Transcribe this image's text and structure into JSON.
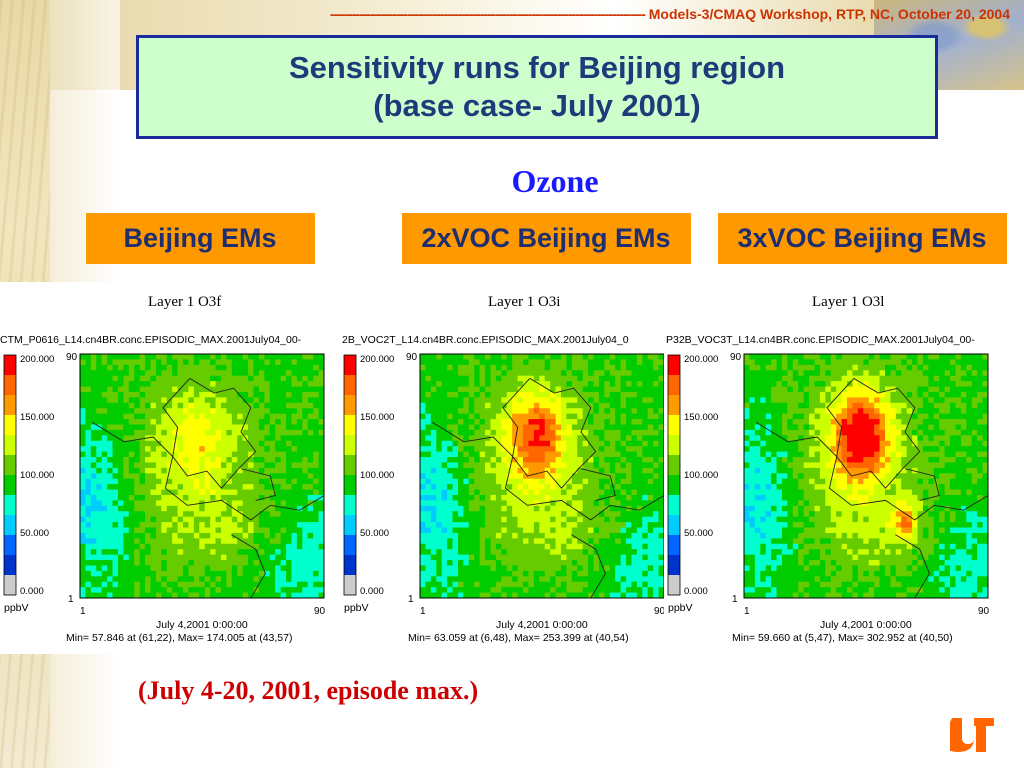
{
  "header": {
    "dashes": "--------------------------------------------------------------------------------------",
    "workshop": "Models-3/CMAQ Workshop, RTP, NC, October 20, 2004"
  },
  "title": {
    "line1": "Sensitivity runs for Beijing region",
    "line2": "(base case- July 2001)"
  },
  "subtitle": "Ozone",
  "scenarios": [
    "Beijing EMs",
    "2xVOC Beijing EMs",
    "3xVOC Beijing EMs"
  ],
  "panels": [
    {
      "layer_title": "Layer 1  O3f",
      "file_label": "CTM_P0616_L14.cn4BR.conc.EPISODIC_MAX.2001July04_00-",
      "date": "July 4,2001 0:00:00",
      "minmax": "Min=  57.846 at (61,22), Max= 174.005 at (43,57)",
      "peak": 0.58
    },
    {
      "layer_title": "Layer 1  O3i",
      "file_label": "2B_VOC2T_L14.cn4BR.conc.EPISODIC_MAX.2001July04_0",
      "date": "July 4,2001 0:00:00",
      "minmax": "Min=  63.059 at (6,48), Max= 253.399 at (40,54)",
      "peak": 0.85
    },
    {
      "layer_title": "Layer 1  O3l",
      "file_label": "P32B_VOC3T_L14.cn4BR.conc.EPISODIC_MAX.2001July04_00-",
      "date": "July 4,2001 0:00:00",
      "minmax": "Min=  59.660 at (5,47), Max= 302.952 at (40,50)",
      "peak": 1.0
    }
  ],
  "colorbar": {
    "ticks": [
      "200.000",
      "150.000",
      "100.000",
      "50.000",
      "0.000"
    ],
    "unit": "ppbV",
    "colors": [
      "#ff0000",
      "#ff6600",
      "#ff9900",
      "#ffff00",
      "#ccff00",
      "#66cc00",
      "#00cc00",
      "#00ffcc",
      "#00ccff",
      "#0066ff",
      "#0033cc",
      "#cccccc"
    ]
  },
  "axes": {
    "x_min": "1",
    "x_max": "90",
    "y_min": "1",
    "y_max": "90"
  },
  "footer": "(July 4-20, 2001, episode max.)",
  "logo_text": "UT"
}
